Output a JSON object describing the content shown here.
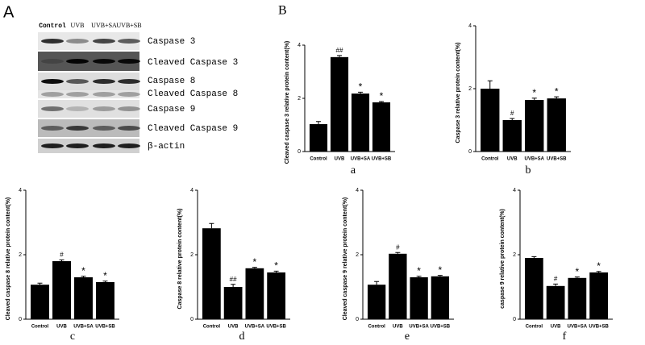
{
  "panel_a": {
    "label": "A",
    "lanes": [
      "Control",
      "UVB",
      "UVB+SA",
      "UVB+SB"
    ],
    "bands": [
      "Caspase 3",
      "Cleaved Caspase 3",
      "Caspase 8",
      "Cleaved Caspase 8",
      "Caspase 9",
      "Cleaved Caspase 9",
      "β-actin"
    ]
  },
  "chart_data": [
    {
      "type": "bar",
      "panel": "B",
      "caption": "a",
      "y_label": "Cleaved caspase 3 relative protein content(%)",
      "categories": [
        "Control",
        "UVB",
        "UVB+SA",
        "UVB+SB"
      ],
      "values": [
        1.03,
        3.55,
        2.18,
        1.85
      ],
      "errors": [
        0.1,
        0.06,
        0.05,
        0.03
      ],
      "annotations": [
        null,
        "##",
        "*",
        "*"
      ],
      "color": "#000000",
      "ylim": [
        0,
        4
      ],
      "yticks": [
        0,
        2,
        4
      ]
    },
    {
      "type": "bar",
      "caption": "b",
      "y_label": "Caspase 3 relative protein content(%)",
      "categories": [
        "Control",
        "UVB",
        "UVB+SA",
        "UVB+SB"
      ],
      "values": [
        2.0,
        1.0,
        1.64,
        1.69
      ],
      "errors": [
        0.25,
        0.05,
        0.06,
        0.05
      ],
      "annotations": [
        null,
        "#",
        "*",
        "*"
      ],
      "color": "#000000",
      "ylim": [
        0,
        4
      ],
      "yticks": [
        0,
        2,
        4
      ]
    },
    {
      "type": "bar",
      "caption": "c",
      "y_label": "Cleaved caspase 8 relative protein content(%)",
      "categories": [
        "Control",
        "UVB",
        "UVB+SA",
        "UVB+SB"
      ],
      "values": [
        1.07,
        1.8,
        1.3,
        1.15
      ],
      "errors": [
        0.05,
        0.04,
        0.03,
        0.03
      ],
      "annotations": [
        null,
        "#",
        "*",
        "*"
      ],
      "color": "#000000",
      "ylim": [
        0,
        4
      ],
      "yticks": [
        0,
        2,
        4
      ]
    },
    {
      "type": "bar",
      "caption": "d",
      "y_label": "Caspase 8 relative protein content(%)",
      "categories": [
        "Control",
        "UVB",
        "UVB+SA",
        "UVB+SB"
      ],
      "values": [
        2.82,
        1.0,
        1.58,
        1.45
      ],
      "errors": [
        0.15,
        0.08,
        0.03,
        0.04
      ],
      "annotations": [
        null,
        "##",
        "*",
        "*"
      ],
      "color": "#000000",
      "ylim": [
        0,
        4
      ],
      "yticks": [
        0,
        2,
        4
      ]
    },
    {
      "type": "bar",
      "caption": "e",
      "y_label": "Cleaved caspase 9 relative protein content(%)",
      "categories": [
        "Control",
        "UVB",
        "UVB+SA",
        "UVB+SB"
      ],
      "values": [
        1.07,
        2.03,
        1.3,
        1.33
      ],
      "errors": [
        0.1,
        0.04,
        0.03,
        0.03
      ],
      "annotations": [
        null,
        "#",
        "*",
        "*"
      ],
      "color": "#000000",
      "ylim": [
        0,
        4
      ],
      "yticks": [
        0,
        2,
        4
      ]
    },
    {
      "type": "bar",
      "caption": "f",
      "y_label": "caspase 9 relative protein content(%)",
      "categories": [
        "Control",
        "UVB",
        "UVB+SA",
        "UVB+SB"
      ],
      "values": [
        1.9,
        1.03,
        1.28,
        1.45
      ],
      "errors": [
        0.04,
        0.06,
        0.03,
        0.03
      ],
      "annotations": [
        null,
        "#",
        "*",
        "*"
      ],
      "color": "#000000",
      "ylim": [
        0,
        4
      ],
      "yticks": [
        0,
        2,
        4
      ]
    }
  ]
}
